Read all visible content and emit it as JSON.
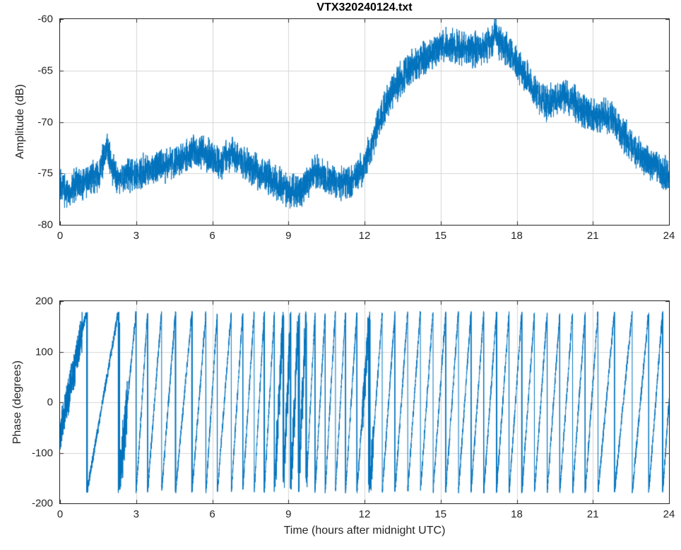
{
  "figure": {
    "background": "#ffffff",
    "line_color": "#0072BD",
    "grid_color": "#d6d6d6",
    "axis_color": "#262626",
    "title_color": "#000000"
  },
  "chart_data": [
    {
      "type": "line",
      "title": "VTX320240124.txt",
      "xlabel": "",
      "ylabel": "Amplitude (dB)",
      "xlim": [
        0,
        24
      ],
      "ylim": [
        -80,
        -60
      ],
      "xticks": [
        0,
        3,
        6,
        9,
        12,
        15,
        18,
        21,
        24
      ],
      "yticks": [
        -80,
        -75,
        -70,
        -65,
        -60
      ],
      "grid": true,
      "legend": "none",
      "series": [
        {
          "name": "amplitude",
          "model": "noisy-envelope",
          "keypoints_x": [
            0,
            0.3,
            0.6,
            0.9,
            1.2,
            1.5,
            1.7,
            1.85,
            2.0,
            2.3,
            2.6,
            3.0,
            3.5,
            4.0,
            4.5,
            5.0,
            5.3,
            5.6,
            6.0,
            6.3,
            6.6,
            6.9,
            7.2,
            7.6,
            8.0,
            8.4,
            8.8,
            9.2,
            9.5,
            9.8,
            10.1,
            10.4,
            10.7,
            11.0,
            11.3,
            11.6,
            11.9,
            12.2,
            12.5,
            12.8,
            13.1,
            13.4,
            13.8,
            14.2,
            14.6,
            15.0,
            15.5,
            16.0,
            16.4,
            16.8,
            17.0,
            17.15,
            17.3,
            17.6,
            18.0,
            18.4,
            18.8,
            19.2,
            19.5,
            19.8,
            20.2,
            20.6,
            21.0,
            21.4,
            21.8,
            22.2,
            22.6,
            23.0,
            23.4,
            23.7,
            24.0
          ],
          "keypoints_y": [
            -76.2,
            -76.8,
            -76.3,
            -75.8,
            -75.6,
            -75.2,
            -73.8,
            -72.4,
            -74.3,
            -75.4,
            -75.3,
            -75.0,
            -74.6,
            -74.3,
            -73.8,
            -73.3,
            -72.9,
            -72.8,
            -73.6,
            -73.9,
            -73.3,
            -73.2,
            -73.9,
            -74.6,
            -75.1,
            -75.6,
            -76.3,
            -76.9,
            -76.6,
            -75.7,
            -74.9,
            -75.3,
            -75.6,
            -75.9,
            -76.1,
            -75.6,
            -74.6,
            -72.8,
            -70.5,
            -68.6,
            -67.0,
            -65.9,
            -64.8,
            -63.9,
            -63.3,
            -62.7,
            -62.6,
            -62.9,
            -63.0,
            -62.7,
            -62.6,
            -61.0,
            -62.4,
            -62.9,
            -64.2,
            -65.7,
            -67.3,
            -68.3,
            -67.6,
            -67.3,
            -68.0,
            -68.9,
            -69.4,
            -69.2,
            -69.6,
            -71.2,
            -72.5,
            -73.6,
            -74.3,
            -74.7,
            -75.3
          ],
          "noise_db": 1.2
        }
      ]
    },
    {
      "type": "line",
      "title": "",
      "xlabel": "Time (hours after midnight UTC)",
      "ylabel": "Phase (degrees)",
      "xlim": [
        0,
        24
      ],
      "ylim": [
        -200,
        200
      ],
      "xticks": [
        0,
        3,
        6,
        9,
        12,
        15,
        18,
        21,
        24
      ],
      "yticks": [
        -200,
        -100,
        0,
        100,
        200
      ],
      "grid": true,
      "legend": "none",
      "series": [
        {
          "name": "phase",
          "model": "wrapped-ramps",
          "ramp_min": -180,
          "ramp_max": 180,
          "first_segment_start_deg": -60,
          "wrap_times": [
            1.05,
            2.3,
            3.0,
            3.45,
            4.0,
            4.55,
            5.2,
            5.75,
            6.2,
            6.75,
            7.2,
            7.65,
            8.05,
            8.45,
            8.8,
            9.1,
            9.4,
            9.7,
            10.05,
            10.45,
            10.85,
            11.25,
            11.7,
            12.2,
            12.7,
            13.2,
            13.7,
            14.2,
            14.7,
            15.2,
            15.7,
            16.2,
            16.7,
            17.2,
            17.7,
            18.2,
            18.7,
            19.2,
            19.7,
            20.2,
            20.7,
            21.2,
            21.85,
            22.55,
            23.2,
            23.75
          ],
          "tail_period_hours": 0.5,
          "noise_deg": 8,
          "noisy_ranges": [
            [
              0,
              0.9,
              30
            ],
            [
              2.3,
              2.65,
              45
            ],
            [
              8.45,
              9.75,
              40
            ],
            [
              11.9,
              12.35,
              35
            ]
          ]
        }
      ]
    }
  ]
}
